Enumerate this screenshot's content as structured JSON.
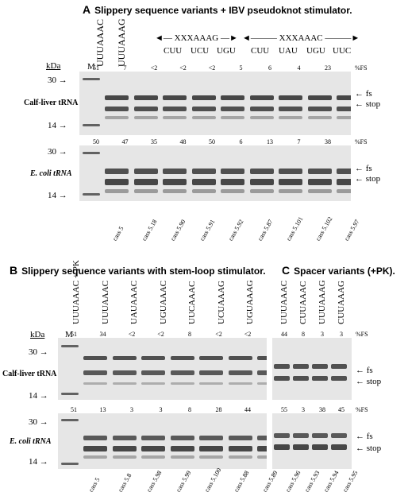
{
  "panelA": {
    "letter": "A",
    "title": "Slippery sequence variants + IBV pseudoknot stimulator.",
    "seq1": "UUUAAAC",
    "seq2": "UUUAAAG",
    "bracket1": "XXXAAAG",
    "bracket2": "XXXAAAC",
    "codons": [
      "CUU",
      "UCU",
      "UGU",
      "CUU",
      "UAU",
      "UGU",
      "UUC"
    ],
    "kda": "kDa",
    "marker": "M",
    "pct_label": "%FS",
    "pct_top": [
      "51",
      "7",
      "<2",
      "<2",
      "<2",
      "5",
      "6",
      "4",
      "23"
    ],
    "pct_bottom": [
      "50",
      "47",
      "35",
      "48",
      "50",
      "6",
      "13",
      "7",
      "38"
    ],
    "row1": "Calf-liver tRNA",
    "row2": "E. coli tRNA",
    "mw_high": "30",
    "mw_low": "14",
    "fs": "fs",
    "stop": "stop",
    "lanes": [
      "cass 5",
      "cass 5.18",
      "cass 5.90",
      "cass 5.91",
      "cass 5.92",
      "cass 5.87",
      "cass 5.101",
      "cass 5.102",
      "cass 5.97"
    ]
  },
  "panelB": {
    "letter": "B",
    "title": "Slippery sequence variants with stem-loop stimulator.",
    "seqs": [
      "UUUAAAC + PK",
      "UUUAAAC",
      "UAUAAAC",
      "UGUAAAC",
      "UUCAAAC",
      "UCUAAAG",
      "UGUAAAG"
    ],
    "kda": "kDa",
    "marker": "M",
    "pct_top": [
      "51",
      "34",
      "<2",
      "<2",
      "8",
      "<2",
      "<2"
    ],
    "pct_bottom": [
      "51",
      "13",
      "3",
      "3",
      "8",
      "28",
      "44"
    ],
    "row1": "Calf-liver tRNA",
    "row2": "E. coli tRNA",
    "mw_high": "30",
    "mw_low": "14",
    "lanes": [
      "cass 5",
      "cass 5.8",
      "cass 5.98",
      "cass 5.99",
      "cass 5.100",
      "cass 5.88",
      "cass 5.89"
    ]
  },
  "panelC": {
    "letter": "C",
    "title": "Spacer variants (+PK).",
    "seqs": [
      "UUUAAAC",
      "CUUAAAC",
      "UUUAAAG",
      "CUUAAAG"
    ],
    "pct_label": "%FS",
    "pct_top": [
      "44",
      "8",
      "3",
      "3"
    ],
    "pct_bottom": [
      "55",
      "3",
      "38",
      "45"
    ],
    "fs": "fs",
    "stop": "stop",
    "lanes": [
      "cass 5.96",
      "cass 5.93",
      "cass 5.94",
      "cass 5.95"
    ]
  }
}
